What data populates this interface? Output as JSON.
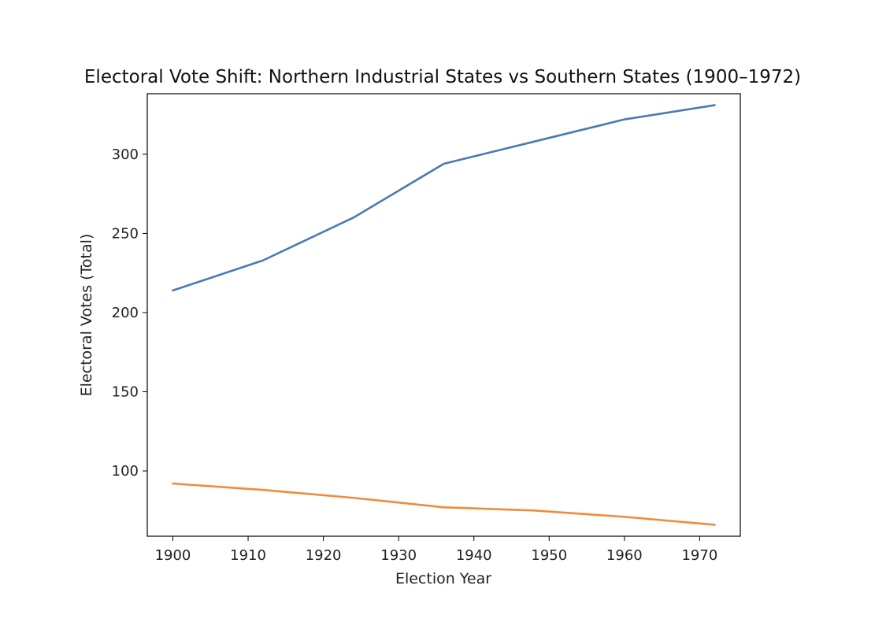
{
  "chart_data": {
    "type": "line",
    "title": "Electoral Vote Shift: Northern Industrial States vs Southern States (1900–1972)",
    "xlabel": "Election Year",
    "ylabel": "Electoral Votes (Total)",
    "x": [
      1900,
      1912,
      1924,
      1936,
      1948,
      1960,
      1972
    ],
    "series": [
      {
        "name": "Northern Industrial States",
        "color": "#4a7bb2",
        "values": [
          214,
          233,
          260,
          294,
          308,
          322,
          331
        ]
      },
      {
        "name": "Southern States",
        "color": "#ef8c3b",
        "values": [
          92,
          88,
          83,
          77,
          75,
          71,
          66
        ]
      }
    ],
    "xlim": [
      1896.6,
      1975.4
    ],
    "ylim": [
      58.75,
      338.25
    ],
    "xticks": [
      1900,
      1910,
      1920,
      1930,
      1940,
      1950,
      1960,
      1970
    ],
    "yticks": [
      100,
      150,
      200,
      250,
      300
    ],
    "grid": false,
    "legend": "none"
  }
}
